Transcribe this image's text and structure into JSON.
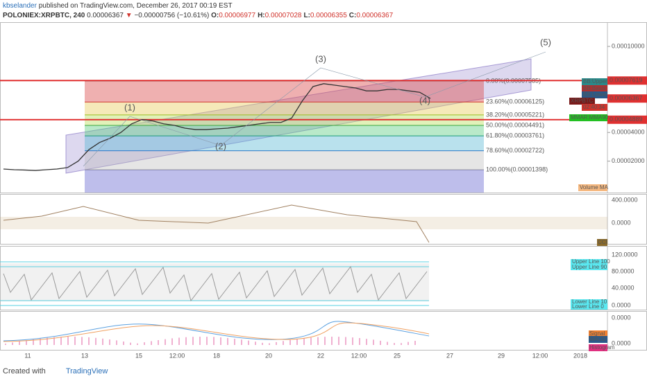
{
  "header": {
    "user": "kbselander",
    "published": "published on TradingView.com, December 26, 2017 00:19 EST",
    "symbol": "POLONIEX:XRPBTC, 240",
    "last": "0.00006367",
    "arrow": "▼",
    "change": "−0.00000756 (−10.61%)",
    "ohlc": [
      {
        "key": "O:",
        "value": "0.00006977"
      },
      {
        "key": "H:",
        "value": "0.00007028"
      },
      {
        "key": "L:",
        "value": "0.00006355"
      },
      {
        "key": "C:",
        "value": "0.00006367"
      }
    ]
  },
  "main_pane": {
    "price_ticks": [
      {
        "value": 0.0001,
        "label": "0.00010000"
      },
      {
        "value": 4e-05,
        "label": "0.00004000"
      },
      {
        "value": 2e-05,
        "label": "0.00002000"
      }
    ],
    "closes": [
      1.45e-05,
      1.4e-05,
      1.38e-05,
      1.35e-05,
      1.4e-05,
      1.45e-05,
      1.55e-05,
      2e-05,
      2.8e-05,
      3.3e-05,
      3.6e-05,
      4e-05,
      4.6e-05,
      4.9e-05,
      4.8e-05,
      4.6e-05,
      4.5e-05,
      4.3e-05,
      4.2e-05,
      4.2e-05,
      4.25e-05,
      4.3e-05,
      4.4e-05,
      4.5e-05,
      4.6e-05,
      4.7e-05,
      4.7e-05,
      5e-05,
      6.2e-05,
      7.2e-05,
      7.4e-05,
      7.3e-05,
      7.2e-05,
      7.1e-05,
      6.9e-05,
      6.9e-05,
      7e-05,
      7e-05,
      6.9e-05,
      6.8e-05,
      6.367e-05
    ],
    "fib_levels": [
      {
        "label": "0.00%(0.00007585)",
        "value": 7.585e-05,
        "color": "#888888"
      },
      {
        "label": "23.60%(0.00006125)",
        "value": 6.125e-05,
        "color": "#d0332c"
      },
      {
        "label": "38.20%(0.00005221)",
        "value": 5.221e-05,
        "color": "#9bbd1f"
      },
      {
        "label": "50.00%(0.00004491)",
        "value": 4.491e-05,
        "color": "#3aa63a"
      },
      {
        "label": "61.80%(0.00003761)",
        "value": 3.761e-05,
        "color": "#1a9a7a"
      },
      {
        "label": "78.60%(0.00002722)",
        "value": 2.722e-05,
        "color": "#2a78c8"
      },
      {
        "label": "100.00%(0.00001398)",
        "value": 1.398e-05,
        "color": "#888888"
      }
    ],
    "red_lines": [
      {
        "label": "0.00007619",
        "value": 7.619e-05
      },
      {
        "label": "0.00004889",
        "value": 4.889e-05
      }
    ],
    "last_price": {
      "label": "0.00006367",
      "value": 6.367e-05
    },
    "badges": [
      "BB:Upper",
      "BB:Basis",
      "BB:Lower",
      "XRPBTC",
      "02:40:34",
      "MMAR:MMA90"
    ],
    "waves": [
      "(1)",
      "(2)",
      "(3)",
      "(4)",
      "(5)"
    ],
    "volume_label": "Volume MA"
  },
  "cci_pane": {
    "ticks": [
      "400.0000",
      "0.0000"
    ],
    "label": "CCI"
  },
  "stoch_pane": {
    "ticks": [
      "120.0000",
      "80.0000",
      "40.0000",
      "0.0000"
    ],
    "lines": [
      "Upper Line 100",
      "Upper Line 90",
      "Lower Line 10",
      "Lower Line 0"
    ]
  },
  "macd_pane": {
    "ticks": [
      "0.0000",
      "0.0000"
    ],
    "labels": [
      "Signal",
      "MACD",
      "Histogram"
    ]
  },
  "date_axis": [
    "11",
    "13",
    "15",
    "12:00",
    "18",
    "20",
    "22",
    "12:00",
    "25",
    "27",
    "29",
    "12:00",
    "2018"
  ],
  "footer": {
    "created": "Created with",
    "brand": "TradingView"
  }
}
